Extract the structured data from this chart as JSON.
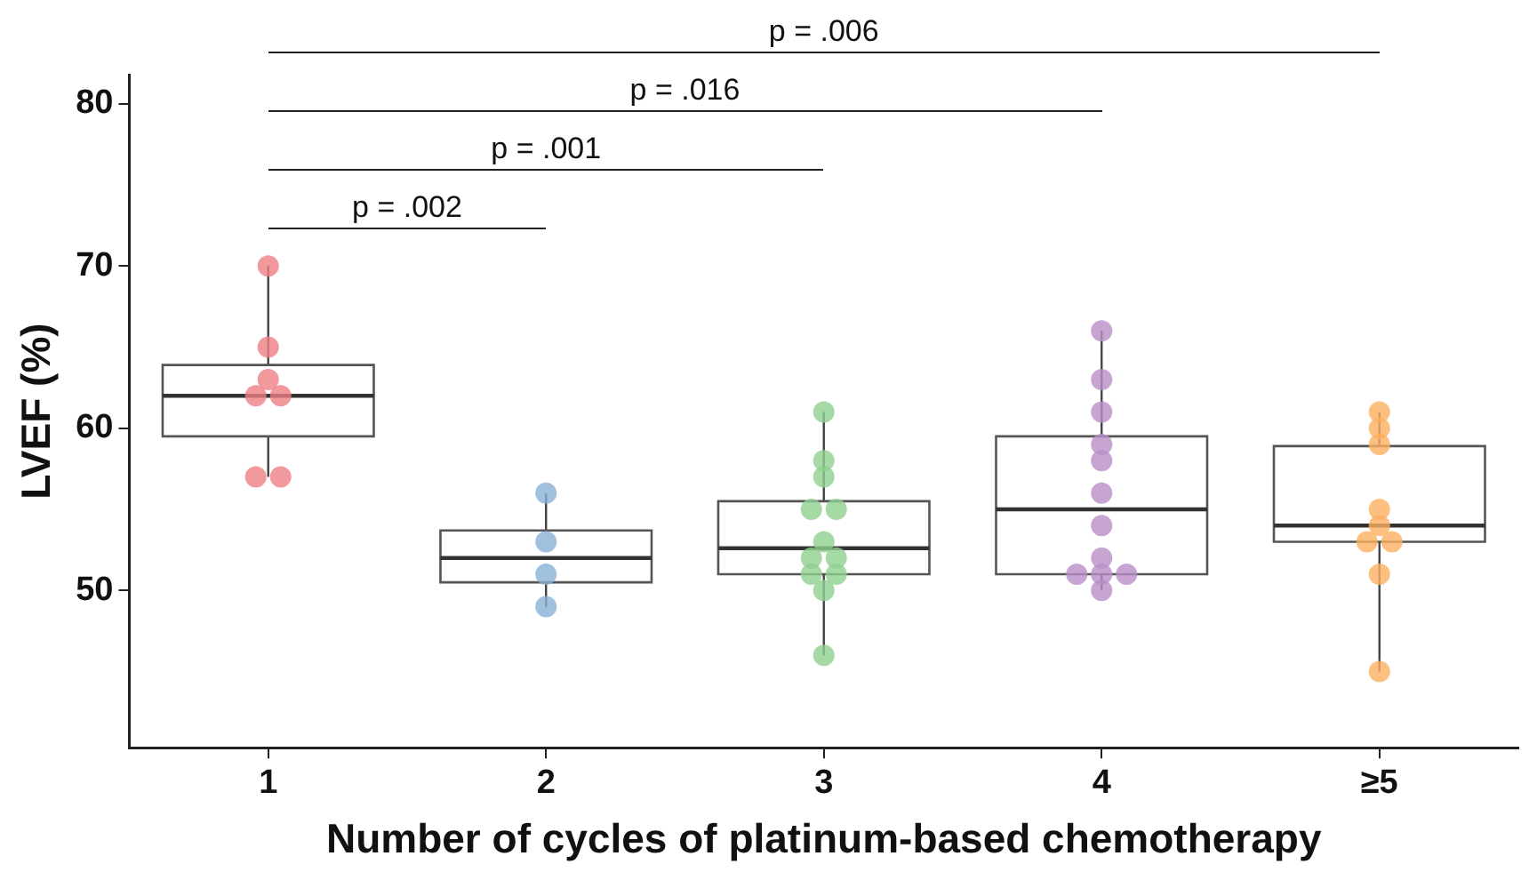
{
  "chart_data": {
    "type": "box",
    "xlabel": "Number of cycles of platinum-based chemotherapy",
    "ylabel": "LVEF (%)",
    "categories": [
      "1",
      "2",
      "3",
      "4",
      "≥5"
    ],
    "ylim": [
      40.3,
      81.8
    ],
    "yticks": [
      50,
      60,
      70,
      80
    ],
    "boxes": [
      {
        "low": 57,
        "q1": 59.5,
        "median": 62,
        "q3": 63.9,
        "high": 70
      },
      {
        "low": 49,
        "q1": 50.5,
        "median": 52,
        "q3": 53.7,
        "high": 56
      },
      {
        "low": 46,
        "q1": 51,
        "median": 52.6,
        "q3": 55.5,
        "high": 61
      },
      {
        "low": 50,
        "q1": 51,
        "median": 55,
        "q3": 59.5,
        "high": 66
      },
      {
        "low": 45,
        "q1": 53,
        "median": 54,
        "q3": 58.9,
        "high": 61
      }
    ],
    "series": [
      {
        "type": "scatter",
        "color": "#ee7f83",
        "x": [
          "1",
          "1",
          "1",
          "1",
          "1",
          "1",
          "1"
        ],
        "values": [
          70,
          65,
          63,
          62,
          62,
          57,
          57
        ]
      },
      {
        "type": "scatter",
        "color": "#89b0d5",
        "x": [
          "2",
          "2",
          "2",
          "2"
        ],
        "values": [
          56,
          53,
          51,
          49
        ]
      },
      {
        "type": "scatter",
        "color": "#8fcf8e",
        "x": [
          "3",
          "3",
          "3",
          "3",
          "3",
          "3",
          "3",
          "3",
          "3",
          "3",
          "3",
          "3"
        ],
        "values": [
          61,
          58,
          57,
          55,
          55,
          53,
          52,
          52,
          51,
          51,
          50,
          46
        ]
      },
      {
        "type": "scatter",
        "color": "#b98dc7",
        "x": [
          "4",
          "4",
          "4",
          "4",
          "4",
          "4",
          "4",
          "4",
          "4",
          "4",
          "4",
          "4"
        ],
        "values": [
          66,
          63,
          61,
          59,
          58,
          56,
          54,
          52,
          51,
          51,
          51,
          50
        ]
      },
      {
        "type": "scatter",
        "color": "#fdb062",
        "x": [
          "≥5",
          "≥5",
          "≥5",
          "≥5",
          "≥5",
          "≥5",
          "≥5",
          "≥5",
          "≥5"
        ],
        "values": [
          61,
          60,
          59,
          55,
          54,
          53,
          53,
          51,
          45
        ]
      }
    ],
    "marker": "circle",
    "annotations": [
      "p = .002",
      "p = .001",
      "p = .016",
      "p = .006"
    ]
  }
}
